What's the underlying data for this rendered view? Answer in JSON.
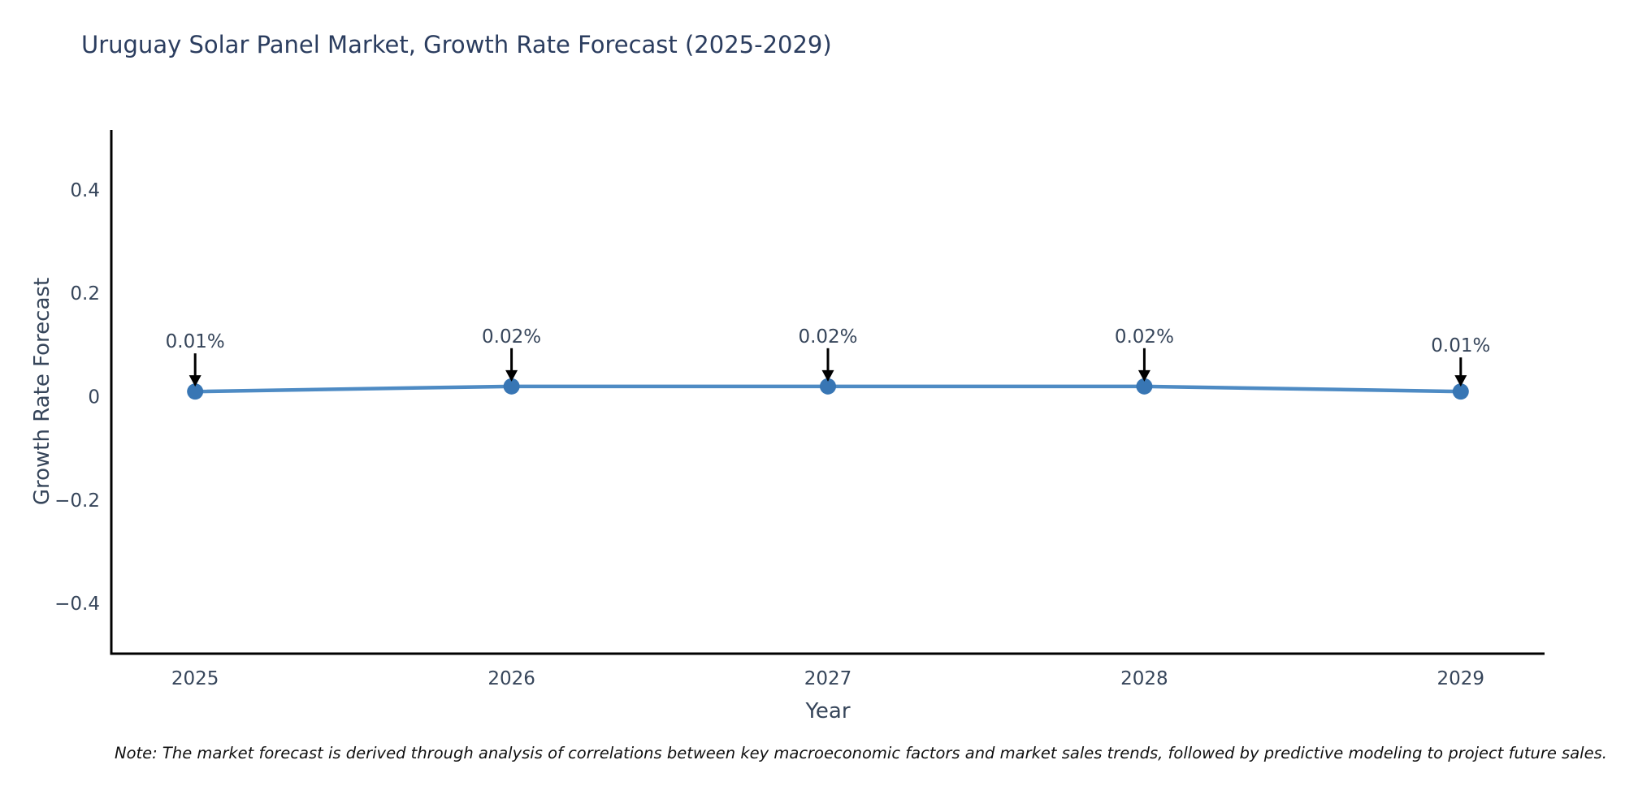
{
  "title": "Uruguay Solar Panel Market, Growth Rate Forecast (2025-2029)",
  "note": "Note: The market forecast is derived through analysis of correlations between key macroeconomic factors and market sales trends, followed by predictive modeling to project future sales.",
  "chart_data": {
    "type": "line",
    "title": "Uruguay Solar Panel Market, Growth Rate Forecast (2025-2029)",
    "xlabel": "Year",
    "ylabel": "Growth Rate Forecast",
    "x": [
      2025,
      2026,
      2027,
      2028,
      2029
    ],
    "values": [
      0.01,
      0.02,
      0.02,
      0.02,
      0.01
    ],
    "point_labels": [
      "0.01%",
      "0.02%",
      "0.02%",
      "0.02%",
      "0.01%"
    ],
    "xtick_labels": [
      "2025",
      "2026",
      "2027",
      "2028",
      "2029"
    ],
    "ytick_values": [
      0.4,
      0.2,
      0,
      -0.2,
      -0.4
    ],
    "ytick_labels": [
      "0.4",
      "0.2",
      "0",
      "−0.2",
      "−0.4"
    ],
    "xlim": [
      2024.735,
      2029.265
    ],
    "ylim": [
      -0.497,
      0.516
    ],
    "grid": false,
    "legend": "none",
    "marker": "circle",
    "colors": {
      "line": "#4e8bc4",
      "marker": "#3876b4",
      "spine": "#000000",
      "arrow": "#000000",
      "tick_text": "#36455a",
      "title_text": "#2b3d5f",
      "note_text": "#111111",
      "background": "#ffffff"
    }
  }
}
